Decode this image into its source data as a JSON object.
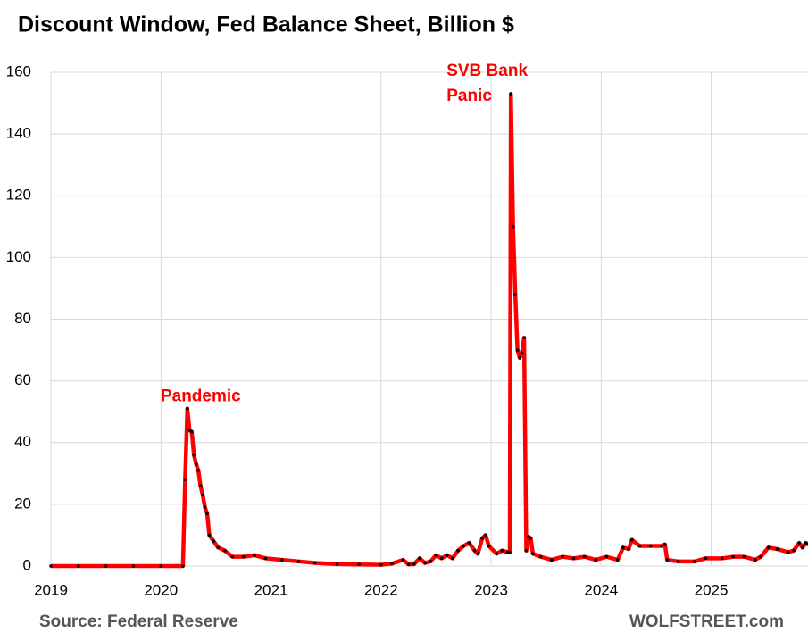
{
  "chart_data": {
    "type": "line",
    "title": "Discount Window, Fed Balance Sheet, Billion $",
    "source": "Source: Federal Reserve",
    "credit": "WOLFSTREET.com",
    "annotations": [
      {
        "text": "Pandemic",
        "x": 2020.24,
        "y": 51
      },
      {
        "lines": [
          "SVB Bank",
          "Panic"
        ],
        "x": 2023.18,
        "y": 153
      }
    ],
    "x": [
      2019.0,
      2019.25,
      2019.5,
      2019.75,
      2020.0,
      2020.2,
      2020.22,
      2020.24,
      2020.26,
      2020.28,
      2020.3,
      2020.32,
      2020.34,
      2020.36,
      2020.38,
      2020.4,
      2020.42,
      2020.44,
      2020.48,
      2020.52,
      2020.58,
      2020.65,
      2020.75,
      2020.85,
      2020.95,
      2021.1,
      2021.25,
      2021.4,
      2021.6,
      2021.8,
      2022.0,
      2022.1,
      2022.2,
      2022.25,
      2022.3,
      2022.35,
      2022.4,
      2022.45,
      2022.5,
      2022.55,
      2022.6,
      2022.65,
      2022.7,
      2022.75,
      2022.8,
      2022.85,
      2022.88,
      2022.92,
      2022.95,
      2022.98,
      2023.05,
      2023.1,
      2023.15,
      2023.17,
      2023.18,
      2023.2,
      2023.22,
      2023.24,
      2023.26,
      2023.28,
      2023.3,
      2023.32,
      2023.34,
      2023.36,
      2023.38,
      2023.45,
      2023.55,
      2023.65,
      2023.75,
      2023.85,
      2023.95,
      2024.05,
      2024.15,
      2024.2,
      2024.25,
      2024.28,
      2024.35,
      2024.45,
      2024.55,
      2024.58,
      2024.6,
      2024.7,
      2024.85,
      2024.95,
      2025.1,
      2025.2,
      2025.3,
      2025.4,
      2025.45,
      2025.52,
      2025.6,
      2025.7,
      2025.75,
      2025.8,
      2025.83,
      2025.86,
      2025.88
    ],
    "series": [
      {
        "name": "Discount Window",
        "color": "#ff0000",
        "marker_color": "#000000",
        "values": [
          0,
          0,
          0,
          0,
          0,
          0,
          28,
          51,
          44,
          43.5,
          36,
          33,
          31,
          26,
          23,
          19,
          17,
          10,
          8,
          6,
          5,
          3,
          3,
          3.5,
          2.5,
          2,
          1.5,
          1,
          0.6,
          0.5,
          0.4,
          0.8,
          2,
          0.5,
          0.6,
          2.5,
          1,
          1.5,
          3.5,
          2.5,
          3.5,
          2.5,
          5,
          6.5,
          7.5,
          5,
          4,
          9,
          10,
          6.5,
          4,
          5,
          4.5,
          4.5,
          153,
          110,
          88,
          70,
          67.5,
          69,
          74,
          5,
          9.5,
          9,
          4,
          3,
          2,
          3,
          2.5,
          3,
          2,
          3,
          2,
          6,
          5.5,
          8.5,
          6.5,
          6.5,
          6.5,
          7,
          2,
          1.5,
          1.5,
          2.5,
          2.5,
          3,
          3,
          2,
          3,
          6,
          5.5,
          4.5,
          5,
          7.5,
          6,
          7.5,
          7
        ]
      }
    ],
    "xlim": [
      2019,
      2025.88
    ],
    "xticks": [
      2019,
      2020,
      2021,
      2022,
      2023,
      2024,
      2025
    ],
    "ylim": [
      0,
      160
    ],
    "yticks": [
      0,
      20,
      40,
      60,
      80,
      100,
      120,
      140,
      160
    ],
    "grid": true
  }
}
